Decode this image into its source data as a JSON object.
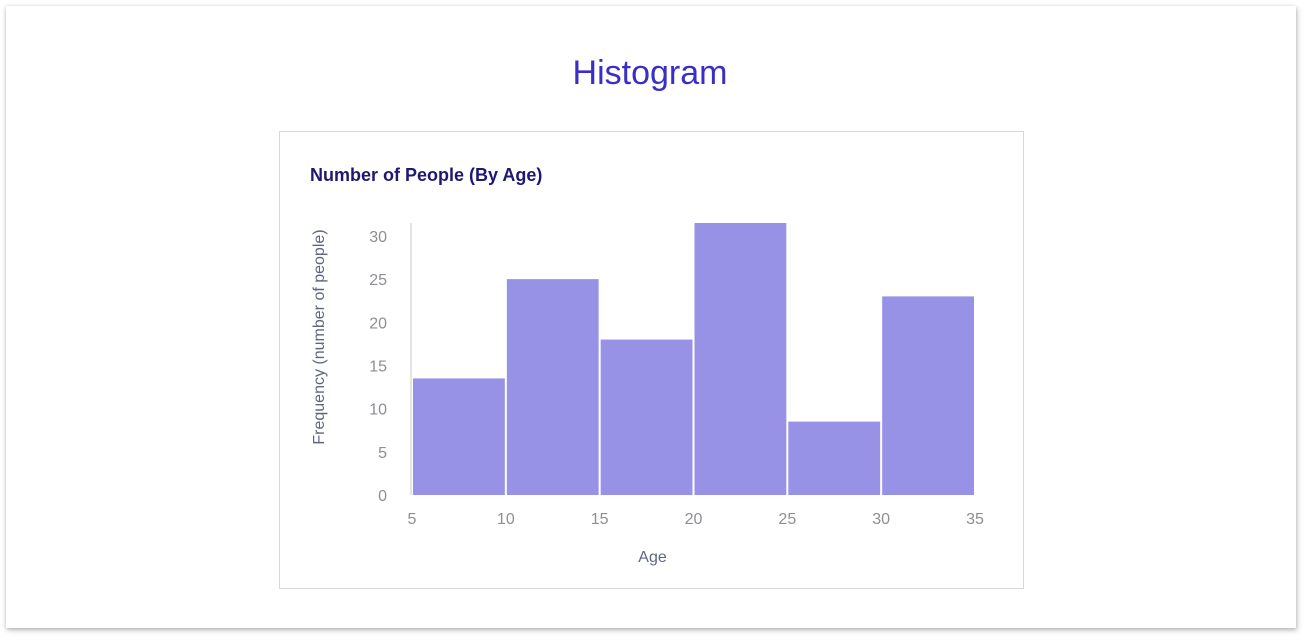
{
  "page": {
    "title": "Histogram"
  },
  "colors": {
    "title": "#3a2fc4",
    "chart_title": "#1e1873",
    "bar": "#9892e6",
    "axis": "#c8c8c8",
    "tick_text": "#8e8e93",
    "axis_title": "#5f6780"
  },
  "chart_data": {
    "type": "bar",
    "title": "Number of People (By Age)",
    "xlabel": "Age",
    "ylabel": "Frequency (number of people)",
    "bins": [
      {
        "start": 5,
        "end": 10,
        "value": 13.5
      },
      {
        "start": 10,
        "end": 15,
        "value": 25
      },
      {
        "start": 15,
        "end": 20,
        "value": 18
      },
      {
        "start": 20,
        "end": 25,
        "value": 31.5
      },
      {
        "start": 25,
        "end": 30,
        "value": 8.5
      },
      {
        "start": 30,
        "end": 35,
        "value": 23
      }
    ],
    "x_ticks": [
      5,
      10,
      15,
      20,
      25,
      30,
      35
    ],
    "y_ticks": [
      0,
      5,
      10,
      15,
      20,
      25,
      30
    ],
    "xlim": [
      5,
      35
    ],
    "ylim": [
      0,
      31.5
    ],
    "grid": false,
    "legend": "none"
  }
}
